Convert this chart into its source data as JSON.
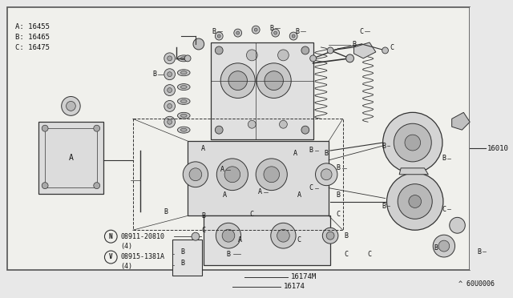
{
  "bg_color": "#e8e8e8",
  "inner_bg": "#f0f0ec",
  "border_color": "#555555",
  "line_color": "#333333",
  "text_color": "#111111",
  "legend_lines": [
    "A: 16455",
    "B: 16465",
    "C: 16475"
  ],
  "footer_text": "^ 60U0006",
  "fig_width": 6.4,
  "fig_height": 3.72,
  "dpi": 100
}
